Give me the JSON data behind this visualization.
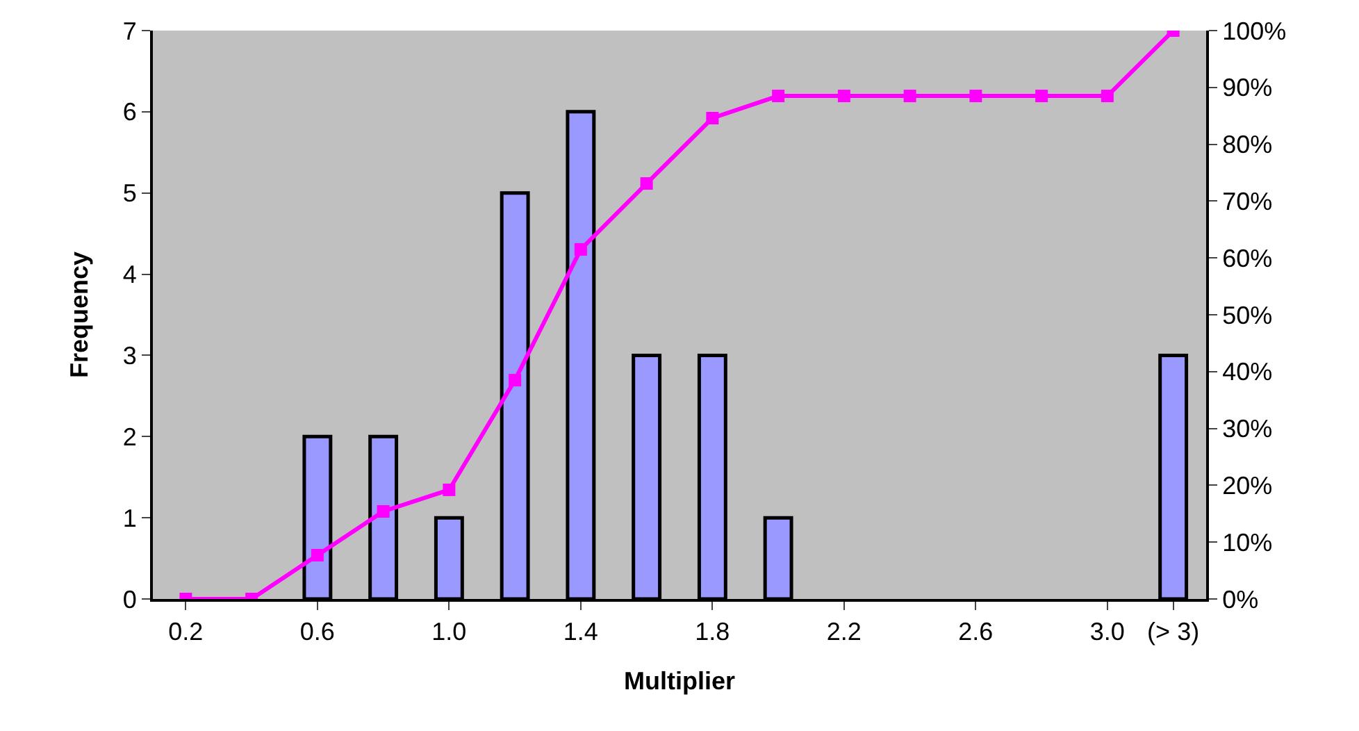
{
  "chart_data": {
    "type": "bar",
    "xlabel": "Multiplier",
    "ylabel": "Frequency",
    "categories": [
      "0.2",
      null,
      "0.6",
      null,
      "1.0",
      null,
      "1.4",
      null,
      "1.8",
      null,
      "2.2",
      null,
      "2.6",
      null,
      "3.0",
      "(> 3)"
    ],
    "series": [
      {
        "color": "#9999ff",
        "values": [
          0,
          0,
          2,
          2,
          1,
          5,
          6,
          3,
          3,
          1,
          0,
          0,
          0,
          0,
          0,
          3
        ]
      },
      {
        "type": "line",
        "axis": "y2",
        "color": "#ff00ff",
        "marker": "square",
        "values": [
          0,
          0,
          7.7,
          15.4,
          19.2,
          38.5,
          61.5,
          73.1,
          84.6,
          88.5,
          88.5,
          88.5,
          88.5,
          88.5,
          88.5,
          100
        ]
      }
    ],
    "ylim": [
      0,
      7
    ],
    "yticks": [
      0,
      1,
      2,
      3,
      4,
      5,
      6,
      7
    ],
    "y2lim": [
      0,
      100
    ],
    "y2ticks": [
      {
        "value": 0,
        "label": "0%"
      },
      {
        "value": 10,
        "label": "10%"
      },
      {
        "value": 20,
        "label": "20%"
      },
      {
        "value": 30,
        "label": "30%"
      },
      {
        "value": 40,
        "label": "40%"
      },
      {
        "value": 50,
        "label": "50%"
      },
      {
        "value": 60,
        "label": "60%"
      },
      {
        "value": 70,
        "label": "70%"
      },
      {
        "value": 80,
        "label": "80%"
      },
      {
        "value": 90,
        "label": "90%"
      },
      {
        "value": 100,
        "label": "100%"
      }
    ],
    "grid": false,
    "legend": false
  }
}
